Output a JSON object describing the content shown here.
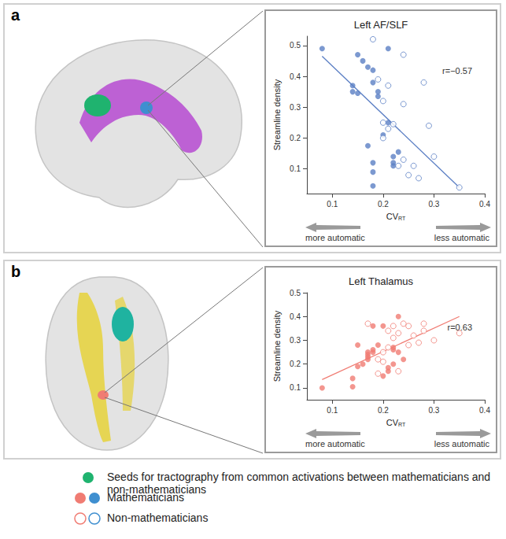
{
  "chart_data": [
    {
      "type": "scatter",
      "panel": "a",
      "title": "Left AF/SLF",
      "ylabel": "Streamline density",
      "xlabel": "CV",
      "xlabel_sub": "RT",
      "x_annotations": [
        "more automatic",
        "less automatic"
      ],
      "annotation": "r=−0.57",
      "xlim": [
        0.05,
        0.4
      ],
      "xticks": [
        0.1,
        0.2,
        0.3,
        0.4
      ],
      "ylim": [
        0.02,
        0.53
      ],
      "yticks": [
        0.1,
        0.2,
        0.3,
        0.4,
        0.5
      ],
      "grid": false,
      "series": [
        {
          "name": "Mathematicians",
          "color": "#5b7fc4",
          "marker": "filled",
          "x": [
            0.08,
            0.14,
            0.14,
            0.15,
            0.15,
            0.16,
            0.17,
            0.17,
            0.18,
            0.18,
            0.18,
            0.18,
            0.18,
            0.19,
            0.19,
            0.2,
            0.21,
            0.21,
            0.22,
            0.22,
            0.22,
            0.23
          ],
          "values": [
            0.49,
            0.37,
            0.35,
            0.47,
            0.345,
            0.45,
            0.43,
            0.175,
            0.42,
            0.38,
            0.12,
            0.09,
            0.045,
            0.35,
            0.335,
            0.21,
            0.25,
            0.49,
            0.12,
            0.11,
            0.14,
            0.155
          ]
        },
        {
          "name": "Non-mathematicians",
          "color": "#5b7fc4",
          "marker": "open",
          "x": [
            0.18,
            0.19,
            0.2,
            0.2,
            0.2,
            0.21,
            0.21,
            0.22,
            0.23,
            0.24,
            0.24,
            0.25,
            0.26,
            0.27,
            0.28,
            0.29,
            0.3,
            0.35,
            0.24
          ],
          "values": [
            0.52,
            0.39,
            0.32,
            0.25,
            0.2,
            0.37,
            0.23,
            0.245,
            0.11,
            0.47,
            0.31,
            0.08,
            0.11,
            0.07,
            0.38,
            0.24,
            0.14,
            0.04,
            0.13
          ]
        },
        {
          "type": "line",
          "color": "#5b7fc4",
          "line_style": "solid",
          "x": [
            0.08,
            0.35
          ],
          "values": [
            0.465,
            0.04
          ]
        }
      ]
    },
    {
      "type": "scatter",
      "panel": "b",
      "title": "Left Thalamus",
      "ylabel": "Streamline density",
      "xlabel": "CV",
      "xlabel_sub": "RT",
      "x_annotations": [
        "more automatic",
        "less automatic"
      ],
      "annotation": "r=0.63",
      "xlim": [
        0.05,
        0.4
      ],
      "xticks": [
        0.1,
        0.2,
        0.3,
        0.4
      ],
      "ylim": [
        0.05,
        0.5
      ],
      "yticks": [
        0.1,
        0.2,
        0.3,
        0.4,
        0.5
      ],
      "grid": false,
      "series": [
        {
          "name": "Mathematicians",
          "color": "#f07c73",
          "marker": "filled",
          "x": [
            0.08,
            0.14,
            0.14,
            0.15,
            0.15,
            0.16,
            0.17,
            0.17,
            0.17,
            0.17,
            0.18,
            0.18,
            0.18,
            0.19,
            0.2,
            0.2,
            0.21,
            0.21,
            0.22,
            0.22,
            0.22,
            0.23,
            0.23,
            0.24
          ],
          "values": [
            0.1,
            0.105,
            0.14,
            0.19,
            0.28,
            0.2,
            0.23,
            0.22,
            0.24,
            0.25,
            0.25,
            0.36,
            0.26,
            0.28,
            0.15,
            0.36,
            0.185,
            0.17,
            0.2,
            0.26,
            0.27,
            0.4,
            0.25,
            0.22
          ]
        },
        {
          "name": "Non-mathematicians",
          "color": "#f07c73",
          "marker": "open",
          "x": [
            0.17,
            0.19,
            0.19,
            0.2,
            0.2,
            0.21,
            0.21,
            0.22,
            0.22,
            0.23,
            0.24,
            0.25,
            0.25,
            0.26,
            0.27,
            0.28,
            0.28,
            0.3,
            0.35,
            0.23
          ],
          "values": [
            0.37,
            0.16,
            0.22,
            0.25,
            0.21,
            0.34,
            0.27,
            0.36,
            0.31,
            0.33,
            0.37,
            0.28,
            0.36,
            0.32,
            0.29,
            0.37,
            0.34,
            0.3,
            0.33,
            0.17
          ]
        },
        {
          "type": "line",
          "color": "#f07c73",
          "line_style": "solid",
          "x": [
            0.08,
            0.35
          ],
          "values": [
            0.135,
            0.4
          ]
        }
      ]
    }
  ],
  "figure_legend": [
    {
      "label": "Seeds for tractography from common  activations between mathematicians and non-mathematicians",
      "colors": [
        "#1fb36f"
      ],
      "marker": "filled"
    },
    {
      "label": "Mathematicians",
      "colors": [
        "#f07c73",
        "#3f8fd0"
      ],
      "marker": "filled"
    },
    {
      "label": "Non-mathematicians",
      "colors": [
        "#f07c73",
        "#3f8fd0"
      ],
      "marker": "open"
    }
  ]
}
